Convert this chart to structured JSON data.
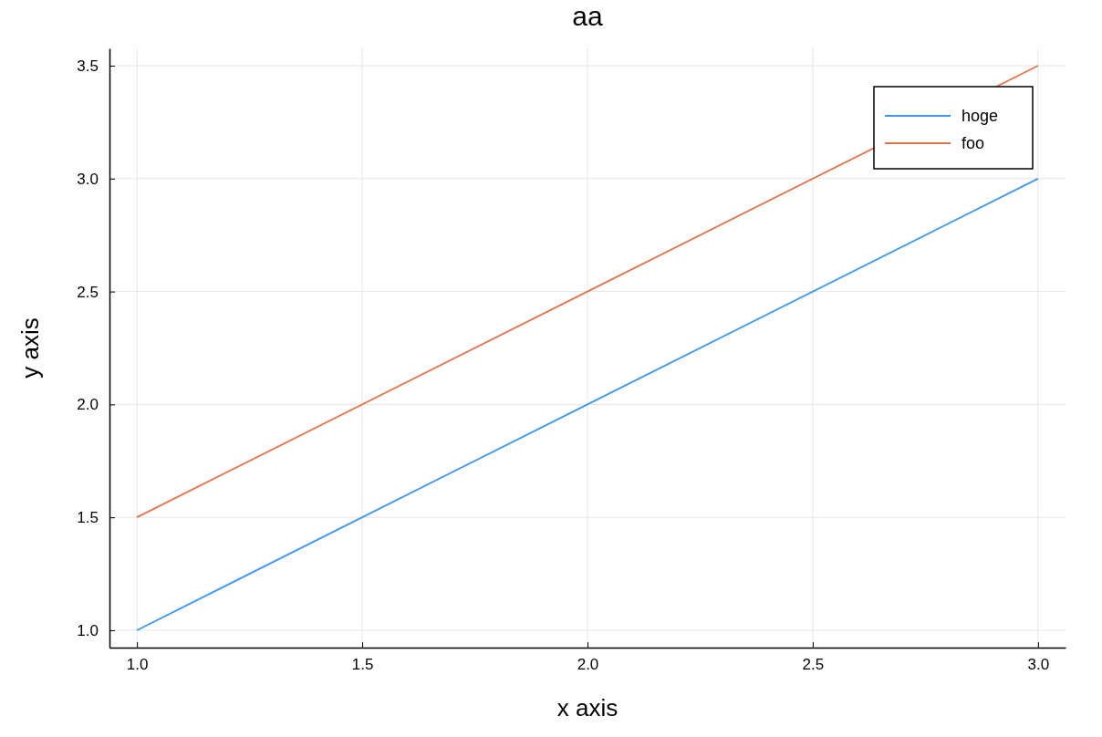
{
  "chart_data": {
    "type": "line",
    "title": "aa",
    "xlabel": "x axis",
    "ylabel": "y axis",
    "x": [
      1,
      2,
      3
    ],
    "series": [
      {
        "name": "hoge",
        "color": "#3f96f0",
        "values": [
          1,
          2,
          3
        ]
      },
      {
        "name": "foo",
        "color": "#e0744b",
        "values": [
          1.5,
          2.5,
          3.5
        ]
      }
    ],
    "xlim": [
      0.939,
      3.061
    ],
    "xticks": [
      {
        "value": 1,
        "label": "1.0"
      },
      {
        "value": 1.5,
        "label": "1.5"
      },
      {
        "value": 2,
        "label": "2.0"
      },
      {
        "value": 2.5,
        "label": "2.5"
      },
      {
        "value": 3,
        "label": "3.0"
      }
    ],
    "ylim": [
      0.923,
      3.577
    ],
    "yticks": [
      {
        "value": 1,
        "label": "1.0"
      },
      {
        "value": 1.5,
        "label": "1.5"
      },
      {
        "value": 2,
        "label": "2.0"
      },
      {
        "value": 2.5,
        "label": "2.5"
      },
      {
        "value": 3,
        "label": "3.0"
      },
      {
        "value": 3.5,
        "label": "3.5"
      }
    ],
    "grid": true,
    "legend": "top right",
    "marker": "none",
    "line_style": "solid"
  }
}
